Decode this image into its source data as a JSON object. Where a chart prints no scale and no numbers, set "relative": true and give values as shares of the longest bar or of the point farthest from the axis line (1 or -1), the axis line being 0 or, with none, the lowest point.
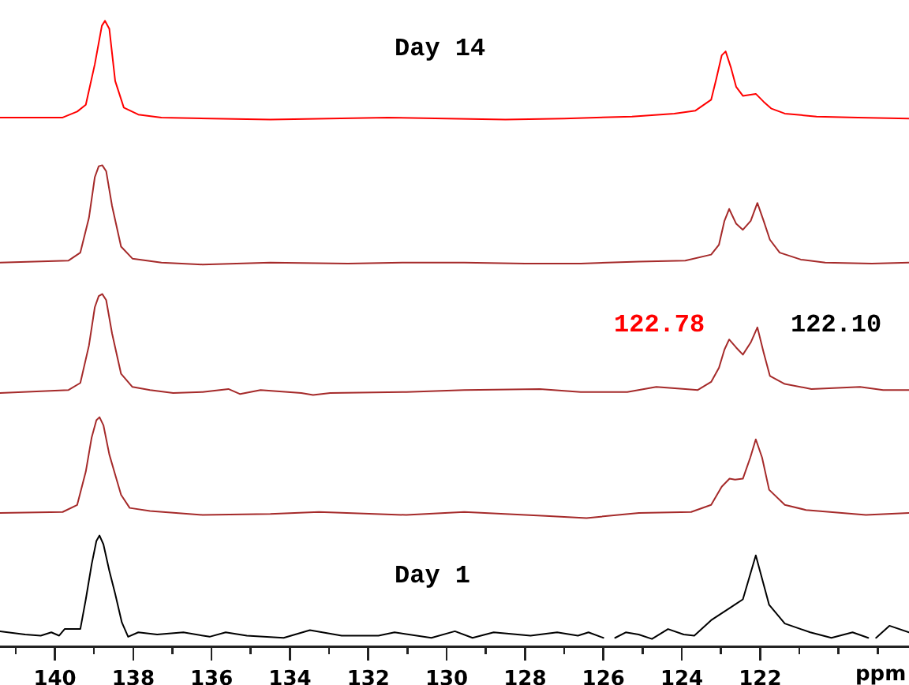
{
  "chart_data": [
    {
      "type": "line",
      "relative": true,
      "color": "#ff0000",
      "xlim": [
        141.4,
        118.2
      ],
      "tick_labels": false,
      "annotations": [
        "Day 14"
      ],
      "x": [
        141.4,
        139.8,
        139.43,
        139.21,
        138.98,
        138.8,
        138.72,
        138.61,
        138.46,
        138.24,
        137.87,
        137.28,
        136.0,
        134.5,
        133.0,
        131.5,
        130.0,
        128.5,
        127.0,
        125.27,
        124.19,
        123.65,
        123.25,
        123.12,
        122.98,
        122.88,
        122.74,
        122.61,
        122.44,
        122.11,
        121.91,
        121.71,
        121.37,
        120.56,
        119.5,
        118.2
      ],
      "values": [
        0.02,
        0.02,
        0.08,
        0.15,
        0.56,
        0.95,
        1.0,
        0.92,
        0.39,
        0.12,
        0.05,
        0.02,
        0.01,
        0.0,
        0.01,
        0.02,
        0.01,
        0.0,
        0.01,
        0.03,
        0.06,
        0.09,
        0.2,
        0.41,
        0.65,
        0.69,
        0.52,
        0.33,
        0.24,
        0.26,
        0.18,
        0.11,
        0.06,
        0.03,
        0.02,
        0.01
      ]
    },
    {
      "type": "line",
      "relative": true,
      "color": "#a52a2a",
      "xlim": [
        141.4,
        118.2
      ],
      "tick_labels": false,
      "x": [
        141.4,
        139.65,
        139.35,
        139.13,
        138.98,
        138.88,
        138.79,
        138.69,
        138.54,
        138.31,
        138.02,
        137.28,
        136.23,
        134.5,
        132.52,
        131.0,
        129.55,
        128.0,
        126.58,
        125.09,
        123.91,
        123.25,
        123.05,
        122.91,
        122.79,
        122.61,
        122.44,
        122.24,
        122.07,
        121.91,
        121.75,
        121.5,
        120.96,
        120.34,
        119.15,
        118.2
      ],
      "values": [
        0.02,
        0.04,
        0.12,
        0.47,
        0.88,
        0.99,
        1.0,
        0.94,
        0.59,
        0.18,
        0.06,
        0.02,
        0.0,
        0.02,
        0.01,
        0.02,
        0.02,
        0.01,
        0.01,
        0.03,
        0.04,
        0.1,
        0.2,
        0.44,
        0.56,
        0.41,
        0.35,
        0.44,
        0.62,
        0.44,
        0.25,
        0.12,
        0.05,
        0.02,
        0.01,
        0.02
      ]
    },
    {
      "type": "line",
      "relative": true,
      "color": "#a52a2a",
      "xlim": [
        141.4,
        118.2
      ],
      "tick_labels": false,
      "annotations": [
        "122.78",
        "122.10"
      ],
      "x": [
        141.4,
        139.65,
        139.35,
        139.13,
        138.98,
        138.88,
        138.79,
        138.69,
        138.54,
        138.31,
        138.02,
        137.57,
        136.98,
        136.23,
        135.57,
        135.27,
        134.75,
        133.71,
        133.41,
        132.97,
        131.03,
        129.55,
        127.62,
        126.58,
        125.39,
        124.65,
        123.91,
        123.59,
        123.25,
        123.05,
        122.91,
        122.79,
        122.61,
        122.44,
        122.24,
        122.07,
        121.91,
        121.75,
        121.37,
        120.69,
        119.45,
        118.86,
        118.2
      ],
      "values": [
        0.02,
        0.05,
        0.12,
        0.49,
        0.87,
        0.98,
        1.0,
        0.94,
        0.61,
        0.21,
        0.08,
        0.05,
        0.02,
        0.03,
        0.06,
        0.01,
        0.05,
        0.02,
        0.0,
        0.02,
        0.03,
        0.05,
        0.06,
        0.03,
        0.03,
        0.08,
        0.06,
        0.05,
        0.13,
        0.27,
        0.45,
        0.55,
        0.47,
        0.4,
        0.52,
        0.67,
        0.42,
        0.19,
        0.11,
        0.06,
        0.08,
        0.05,
        0.05
      ]
    },
    {
      "type": "line",
      "relative": true,
      "color": "#a52a2a",
      "xlim": [
        141.4,
        118.2
      ],
      "tick_labels": false,
      "x": [
        141.4,
        139.8,
        139.43,
        139.21,
        139.06,
        138.94,
        138.86,
        138.76,
        138.61,
        138.46,
        138.31,
        138.09,
        137.57,
        136.23,
        134.5,
        133.26,
        131.03,
        129.55,
        127.47,
        126.43,
        125.09,
        123.76,
        123.25,
        122.98,
        122.78,
        122.64,
        122.44,
        122.25,
        122.11,
        121.95,
        121.77,
        121.37,
        120.83,
        119.3,
        118.2
      ],
      "values": [
        0.05,
        0.06,
        0.13,
        0.46,
        0.8,
        0.97,
        1.0,
        0.92,
        0.63,
        0.43,
        0.23,
        0.1,
        0.07,
        0.03,
        0.04,
        0.06,
        0.03,
        0.06,
        0.02,
        0.0,
        0.05,
        0.06,
        0.13,
        0.31,
        0.39,
        0.38,
        0.39,
        0.6,
        0.78,
        0.6,
        0.28,
        0.13,
        0.08,
        0.03,
        0.05
      ]
    },
    {
      "type": "line",
      "relative": true,
      "color": "#000000",
      "xlim": [
        141.4,
        118.2
      ],
      "tick_labels": "x",
      "xlabel": "ppm",
      "annotations": [
        "Day 1"
      ],
      "xticks": [
        {
          "value": 141,
          "label": null
        },
        140,
        {
          "value": 139,
          "label": null
        },
        138,
        {
          "value": 137,
          "label": null
        },
        136,
        {
          "value": 135,
          "label": null
        },
        134,
        {
          "value": 133,
          "label": null
        },
        132,
        {
          "value": 131,
          "label": null
        },
        130,
        {
          "value": 129,
          "label": null
        },
        128,
        {
          "value": 127,
          "label": null
        },
        126,
        {
          "value": 125,
          "label": null
        },
        124,
        {
          "value": 123,
          "label": null
        },
        122,
        {
          "value": 121,
          "label": null
        },
        {
          "value": 120,
          "label": null
        },
        {
          "value": 119,
          "label": null
        }
      ],
      "x": [
        141.4,
        140.76,
        140.36,
        140.09,
        139.89,
        139.75,
        139.35,
        139.21,
        139.06,
        138.94,
        138.86,
        138.76,
        138.61,
        138.46,
        138.29,
        138.13,
        137.87,
        137.39,
        136.72,
        136.05,
        135.64,
        135.1,
        134.16,
        133.49,
        132.68,
        131.74,
        131.33,
        130.39,
        129.79,
        129.34,
        128.8,
        127.86,
        127.18,
        126.65,
        126.38,
        126.0,
        125.85,
        125.7,
        125.43,
        125.1,
        124.76,
        124.35,
        123.95,
        123.68,
        123.25,
        122.78,
        122.44,
        122.11,
        121.77,
        121.37,
        120.72,
        120.18,
        119.64,
        119.24,
        119.14,
        119.04,
        118.7,
        118.2
      ],
      "values": [
        0.13,
        0.1,
        0.09,
        0.12,
        0.09,
        0.15,
        0.15,
        0.42,
        0.74,
        0.95,
        1.0,
        0.92,
        0.68,
        0.47,
        0.21,
        0.08,
        0.12,
        0.1,
        0.12,
        0.08,
        0.12,
        0.09,
        0.07,
        0.14,
        0.09,
        0.09,
        0.12,
        0.07,
        0.13,
        0.07,
        0.12,
        0.09,
        0.12,
        0.09,
        0.12,
        0.07,
        null,
        0.07,
        0.12,
        0.1,
        0.06,
        0.15,
        0.1,
        0.09,
        0.23,
        0.34,
        0.42,
        0.82,
        0.37,
        0.2,
        0.12,
        0.07,
        0.12,
        0.07,
        null,
        0.07,
        0.18,
        0.12
      ]
    }
  ]
}
